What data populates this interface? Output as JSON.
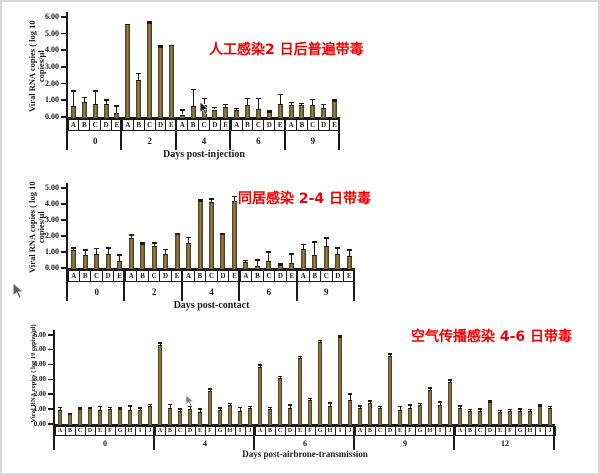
{
  "page": {
    "background": "#ffffff",
    "frame_color": "#d8d8d8"
  },
  "colors": {
    "bar_face": "#7d673a",
    "bar_edge": "#352b12",
    "axis": "#1a1a1a",
    "annotation_red": "#ee0000"
  },
  "cursors": [
    "mouse-pointer-on-chart-1",
    "mouse-pointer-left-margin",
    "mouse-pointer-on-chart-3"
  ],
  "chart_data": [
    {
      "type": "bar",
      "title": "人工感染2 日后普遍带毒",
      "xlabel": "Days post-injection",
      "ylabel_lines": [
        "Viral RNA copies ( log 10",
        "copies/µl"
      ],
      "ylim": [
        0,
        6
      ],
      "yticks": [
        "6.00",
        "5.00",
        "4.00",
        "3.00",
        "2.00",
        "1.00",
        "0.00"
      ],
      "grid": false,
      "groups": [
        {
          "label": "0",
          "bars": [
            {
              "x": "A",
              "y": 0.65,
              "err_top": 1.55
            },
            {
              "x": "B",
              "y": 0.9,
              "err_top": 1.15
            },
            {
              "x": "C",
              "y": 0.8,
              "err_top": 1.55
            },
            {
              "x": "D",
              "y": 0.8,
              "err_top": 1.0
            },
            {
              "x": "E",
              "y": 0.25,
              "err_top": 0.65
            }
          ]
        },
        {
          "label": "2",
          "bars": [
            {
              "x": "A",
              "y": 5.6,
              "err_top": 5.6
            },
            {
              "x": "B",
              "y": 2.2,
              "err_top": 2.6
            },
            {
              "x": "C",
              "y": 5.65,
              "err_top": 5.7
            },
            {
              "x": "D",
              "y": 4.2,
              "err_top": 4.25
            },
            {
              "x": "E",
              "y": 4.3,
              "err_top": 4.3
            }
          ]
        },
        {
          "label": "4",
          "bars": [
            {
              "x": "A",
              "y": 0.15,
              "err_top": 0.4
            },
            {
              "x": "B",
              "y": 0.65,
              "err_top": 1.65
            },
            {
              "x": "C",
              "y": 0.75,
              "err_top": 1.1
            },
            {
              "x": "D",
              "y": 0.45,
              "err_top": 0.55
            },
            {
              "x": "E",
              "y": 0.6,
              "err_top": 0.75
            }
          ]
        },
        {
          "label": "6",
          "bars": [
            {
              "x": "A",
              "y": 0.45,
              "err_top": 0.5
            },
            {
              "x": "B",
              "y": 0.7,
              "err_top": 1.1
            },
            {
              "x": "C",
              "y": 0.5,
              "err_top": 1.1
            },
            {
              "x": "D",
              "y": 0.3,
              "err_top": 0.35
            },
            {
              "x": "E",
              "y": 0.8,
              "err_top": 1.35
            }
          ]
        },
        {
          "label": "9",
          "bars": [
            {
              "x": "A",
              "y": 0.7,
              "err_top": 0.85
            },
            {
              "x": "B",
              "y": 0.75,
              "err_top": 0.8
            },
            {
              "x": "C",
              "y": 0.7,
              "err_top": 1.05
            },
            {
              "x": "D",
              "y": 0.55,
              "err_top": 0.75
            },
            {
              "x": "E",
              "y": 0.95,
              "err_top": 1.0
            }
          ]
        }
      ]
    },
    {
      "type": "bar",
      "title": "同居感染 2-4 日带毒",
      "xlabel": "Days post-contact",
      "ylabel_lines": [
        "Viral RNA copies ( log 10",
        "copies/µl"
      ],
      "ylim": [
        0,
        5
      ],
      "yticks": [
        "5.00",
        "4.00",
        "3.00",
        "2.00",
        "1.00",
        "0.00"
      ],
      "grid": false,
      "groups": [
        {
          "label": "0",
          "bars": [
            {
              "x": "A",
              "y": 1.1,
              "err_top": 1.25
            },
            {
              "x": "B",
              "y": 0.8,
              "err_top": 1.1
            },
            {
              "x": "C",
              "y": 0.85,
              "err_top": 1.2
            },
            {
              "x": "D",
              "y": 0.85,
              "err_top": 1.25
            },
            {
              "x": "E",
              "y": 0.45,
              "err_top": 0.8
            }
          ]
        },
        {
          "label": "2",
          "bars": [
            {
              "x": "A",
              "y": 1.9,
              "err_top": 2.05
            },
            {
              "x": "B",
              "y": 1.5,
              "err_top": 1.55
            },
            {
              "x": "C",
              "y": 1.4,
              "err_top": 1.55
            },
            {
              "x": "D",
              "y": 0.9,
              "err_top": 1.15
            },
            {
              "x": "E",
              "y": 2.1,
              "err_top": 2.15
            }
          ]
        },
        {
          "label": "4",
          "bars": [
            {
              "x": "A",
              "y": 1.55,
              "err_top": 1.9
            },
            {
              "x": "B",
              "y": 4.2,
              "err_top": 4.25
            },
            {
              "x": "C",
              "y": 4.15,
              "err_top": 4.3
            },
            {
              "x": "D",
              "y": 2.1,
              "err_top": 2.15
            },
            {
              "x": "E",
              "y": 4.2,
              "err_top": 4.45
            }
          ]
        },
        {
          "label": "6",
          "bars": [
            {
              "x": "A",
              "y": 0.4,
              "err_top": 0.45
            },
            {
              "x": "B",
              "y": 0.15,
              "err_top": 0.5
            },
            {
              "x": "C",
              "y": 0.45,
              "err_top": 1.0
            },
            {
              "x": "D",
              "y": 0.2,
              "err_top": 0.25
            },
            {
              "x": "E",
              "y": 0.3,
              "err_top": 0.85
            }
          ]
        },
        {
          "label": "9",
          "bars": [
            {
              "x": "A",
              "y": 1.2,
              "err_top": 1.45
            },
            {
              "x": "B",
              "y": 0.8,
              "err_top": 1.6
            },
            {
              "x": "C",
              "y": 1.35,
              "err_top": 1.85
            },
            {
              "x": "D",
              "y": 0.9,
              "err_top": 1.25
            },
            {
              "x": "E",
              "y": 0.75,
              "err_top": 1.1
            }
          ]
        }
      ]
    },
    {
      "type": "bar",
      "title": "空气传播感染 4-6 日带毒",
      "xlabel": "Days post-airbrone-transmission",
      "ylabel_lines": [
        "Viral RNA copies ( log 10 copies/µl)"
      ],
      "ylim": [
        0,
        6
      ],
      "yticks": [
        "6.00",
        "5.00",
        "4.00",
        "3.00",
        "2.00",
        "1.00",
        "0.00"
      ],
      "grid": false,
      "groups": [
        {
          "label": "0",
          "bars": [
            {
              "x": "A",
              "y": 0.95,
              "err_top": 1.1
            },
            {
              "x": "B",
              "y": 0.65,
              "err_top": 0.7
            },
            {
              "x": "C",
              "y": 1.0,
              "err_top": 1.05
            },
            {
              "x": "D",
              "y": 1.05,
              "err_top": 1.1
            },
            {
              "x": "E",
              "y": 0.95,
              "err_top": 1.15
            },
            {
              "x": "F",
              "y": 1.0,
              "err_top": 1.1
            },
            {
              "x": "G",
              "y": 1.0,
              "err_top": 1.05
            },
            {
              "x": "H",
              "y": 0.95,
              "err_top": 1.2
            },
            {
              "x": "I",
              "y": 0.95,
              "err_top": 1.05
            },
            {
              "x": "J",
              "y": 1.2,
              "err_top": 1.3
            }
          ]
        },
        {
          "label": "4",
          "bars": [
            {
              "x": "A",
              "y": 5.3,
              "err_top": 5.45
            },
            {
              "x": "B",
              "y": 1.1,
              "err_top": 1.3
            },
            {
              "x": "C",
              "y": 0.85,
              "err_top": 1.0
            },
            {
              "x": "D",
              "y": 1.0,
              "err_top": 1.15
            },
            {
              "x": "E",
              "y": 0.8,
              "err_top": 1.0
            },
            {
              "x": "F",
              "y": 2.25,
              "err_top": 2.35
            },
            {
              "x": "G",
              "y": 0.95,
              "err_top": 1.05
            },
            {
              "x": "H",
              "y": 1.3,
              "err_top": 1.35
            },
            {
              "x": "I",
              "y": 0.9,
              "err_top": 1.1
            },
            {
              "x": "J",
              "y": 1.05,
              "err_top": 1.15
            }
          ]
        },
        {
          "label": "6",
          "bars": [
            {
              "x": "A",
              "y": 3.85,
              "err_top": 3.95
            },
            {
              "x": "B",
              "y": 1.0,
              "err_top": 1.1
            },
            {
              "x": "C",
              "y": 3.1,
              "err_top": 3.2
            },
            {
              "x": "D",
              "y": 1.05,
              "err_top": 1.25
            },
            {
              "x": "E",
              "y": 4.45,
              "err_top": 4.55
            },
            {
              "x": "F",
              "y": 1.6,
              "err_top": 1.7
            },
            {
              "x": "G",
              "y": 5.5,
              "err_top": 5.6
            },
            {
              "x": "H",
              "y": 1.2,
              "err_top": 1.4
            },
            {
              "x": "I",
              "y": 5.85,
              "err_top": 5.9
            },
            {
              "x": "J",
              "y": 1.65,
              "err_top": 2.0
            }
          ]
        },
        {
          "label": "9",
          "bars": [
            {
              "x": "A",
              "y": 1.1,
              "err_top": 1.2
            },
            {
              "x": "B",
              "y": 1.4,
              "err_top": 1.55
            },
            {
              "x": "C",
              "y": 1.05,
              "err_top": 1.15
            },
            {
              "x": "D",
              "y": 4.6,
              "err_top": 4.7
            },
            {
              "x": "E",
              "y": 0.95,
              "err_top": 1.15
            },
            {
              "x": "F",
              "y": 1.1,
              "err_top": 1.25
            },
            {
              "x": "G",
              "y": 1.25,
              "err_top": 1.35
            },
            {
              "x": "H",
              "y": 2.3,
              "err_top": 2.4
            },
            {
              "x": "I",
              "y": 1.3,
              "err_top": 1.45
            },
            {
              "x": "J",
              "y": 2.85,
              "err_top": 2.95
            }
          ]
        },
        {
          "label": "12",
          "bars": [
            {
              "x": "A",
              "y": 1.1,
              "err_top": 1.2
            },
            {
              "x": "B",
              "y": 0.85,
              "err_top": 0.95
            },
            {
              "x": "C",
              "y": 0.9,
              "err_top": 1.0
            },
            {
              "x": "D",
              "y": 1.45,
              "err_top": 1.55
            },
            {
              "x": "E",
              "y": 0.8,
              "err_top": 0.9
            },
            {
              "x": "F",
              "y": 0.85,
              "err_top": 0.95
            },
            {
              "x": "G",
              "y": 0.9,
              "err_top": 1.0
            },
            {
              "x": "H",
              "y": 0.85,
              "err_top": 0.95
            },
            {
              "x": "I",
              "y": 1.2,
              "err_top": 1.25
            },
            {
              "x": "J",
              "y": 1.1,
              "err_top": 1.15
            }
          ]
        }
      ]
    }
  ]
}
